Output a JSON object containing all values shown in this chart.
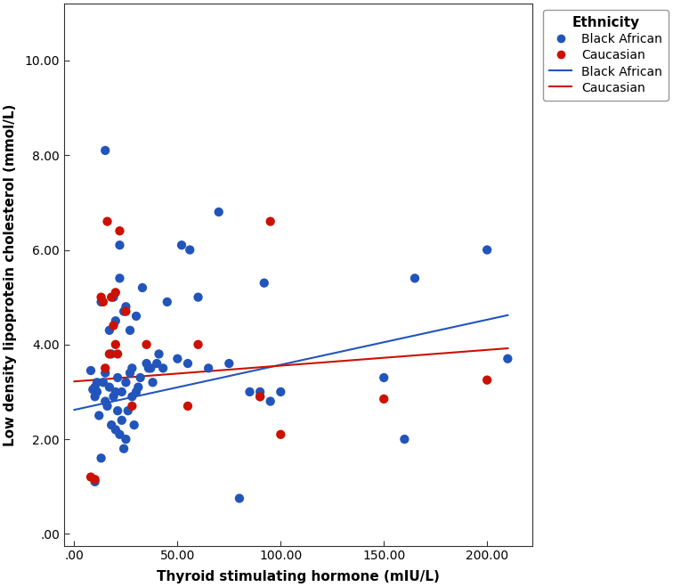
{
  "blue_x": [
    8,
    9,
    10,
    10,
    10,
    11,
    11,
    12,
    13,
    13,
    14,
    15,
    15,
    15,
    16,
    17,
    17,
    18,
    18,
    19,
    19,
    20,
    20,
    20,
    21,
    21,
    22,
    22,
    22,
    23,
    23,
    24,
    24,
    25,
    25,
    25,
    26,
    27,
    27,
    28,
    28,
    29,
    30,
    30,
    31,
    32,
    33,
    35,
    36,
    37,
    38,
    40,
    41,
    43,
    45,
    50,
    52,
    55,
    56,
    60,
    65,
    70,
    75,
    80,
    85,
    90,
    90,
    92,
    95,
    100,
    150,
    160,
    165,
    200,
    210
  ],
  "blue_y": [
    3.45,
    3.05,
    1.1,
    2.9,
    3.1,
    3.0,
    3.2,
    2.5,
    1.6,
    4.9,
    3.2,
    2.8,
    3.4,
    8.1,
    2.7,
    4.3,
    3.1,
    2.3,
    3.8,
    2.9,
    5.0,
    2.2,
    3.0,
    4.5,
    2.6,
    3.3,
    2.1,
    6.1,
    5.4,
    2.4,
    3.0,
    1.8,
    4.7,
    2.0,
    3.2,
    4.8,
    2.6,
    3.4,
    4.3,
    2.9,
    3.5,
    2.3,
    3.0,
    4.6,
    3.1,
    3.3,
    5.2,
    3.6,
    3.5,
    3.5,
    3.2,
    3.6,
    3.8,
    3.5,
    4.9,
    3.7,
    6.1,
    3.6,
    6.0,
    5.0,
    3.5,
    6.8,
    3.6,
    0.75,
    3.0,
    2.9,
    3.0,
    5.3,
    2.8,
    3.0,
    3.3,
    2.0,
    5.4,
    6.0,
    3.7
  ],
  "red_x": [
    8,
    10,
    13,
    14,
    15,
    16,
    17,
    18,
    19,
    20,
    20,
    21,
    22,
    25,
    28,
    35,
    55,
    60,
    90,
    95,
    100,
    150,
    200
  ],
  "red_y": [
    1.2,
    1.15,
    5.0,
    4.9,
    3.5,
    6.6,
    3.8,
    5.0,
    4.4,
    4.0,
    5.1,
    3.8,
    6.4,
    4.7,
    2.7,
    4.0,
    2.7,
    4.0,
    2.9,
    6.6,
    2.1,
    2.85,
    3.25
  ],
  "blue_line_x": [
    0,
    210
  ],
  "blue_line_y": [
    2.62,
    4.62
  ],
  "red_line_x": [
    0,
    210
  ],
  "red_line_y": [
    3.22,
    3.92
  ],
  "blue_color": "#2255bb",
  "red_color": "#cc1100",
  "blue_line_color": "#2255bb",
  "red_line_color": "#cc1100",
  "xlabel": "Thyroid stimulating hormone (mIU/L)",
  "ylabel": "Low density lipoprotein cholesterol (mmol/L)",
  "xlim": [
    -5,
    222
  ],
  "ylim": [
    -0.25,
    11.2
  ],
  "xticks": [
    0,
    50,
    100,
    150,
    200
  ],
  "xtick_labels": [
    ".00",
    "50.00",
    "100.00",
    "150.00",
    "200.00"
  ],
  "yticks": [
    0,
    2,
    4,
    6,
    8,
    10
  ],
  "ytick_labels": [
    ".00",
    "2.00",
    "4.00",
    "6.00",
    "8.00",
    "10.00"
  ],
  "legend_title": "Ethnicity",
  "marker_size": 55,
  "line_width": 1.5,
  "background_color": "#ffffff",
  "tick_fontsize": 10,
  "label_fontsize": 11,
  "legend_fontsize": 10,
  "legend_title_fontsize": 11
}
